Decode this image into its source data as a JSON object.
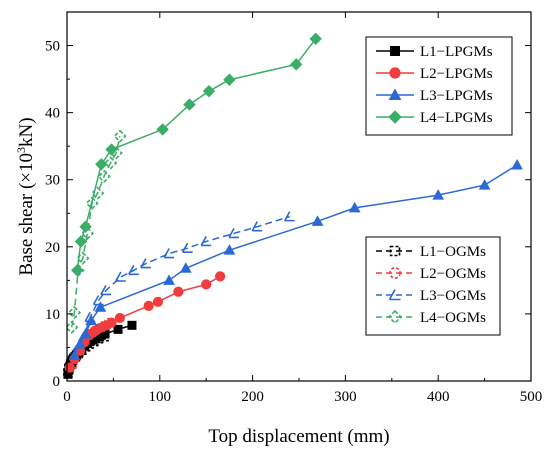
{
  "chart_data": {
    "type": "line",
    "xlabel": "Top displacement (mm)",
    "ylabel_prefix": "Base shear (×10",
    "ylabel_exp": "3",
    "ylabel_suffix": "kN)",
    "xlim": [
      0,
      500
    ],
    "ylim": [
      0,
      55
    ],
    "xticks": [
      0,
      100,
      200,
      300,
      400,
      500
    ],
    "yticks": [
      0,
      10,
      20,
      30,
      40,
      50
    ],
    "grid": false,
    "legends": [
      {
        "placement": "top-right",
        "series": [
          "L1−LPGMs",
          "L2−LPGMs",
          "L3−LPGMs",
          "L4−LPGMs"
        ]
      },
      {
        "placement": "lower-right",
        "series": [
          "L1−OGMs",
          "L2−OGMs",
          "L3−OGMs",
          "L4−OGMs"
        ]
      }
    ],
    "series": [
      {
        "name": "L1−LPGMs",
        "color": "#000000",
        "marker": "square",
        "filled": true,
        "dash": false,
        "x": [
          1,
          2,
          3,
          5,
          7,
          10,
          13,
          16,
          19,
          22,
          25,
          28,
          31,
          34,
          37,
          41,
          55,
          70
        ],
        "y": [
          1.0,
          1.6,
          2.2,
          2.8,
          3.4,
          3.9,
          4.3,
          4.8,
          5.2,
          5.6,
          5.9,
          6.1,
          6.3,
          6.6,
          6.8,
          7.0,
          7.7,
          8.3
        ]
      },
      {
        "name": "L2−LPGMs",
        "color": "#f03c3c",
        "marker": "circle",
        "filled": true,
        "dash": false,
        "x": [
          3,
          8,
          14,
          19,
          24,
          28,
          31,
          34,
          38,
          43,
          48,
          57,
          88,
          98,
          120,
          150,
          165
        ],
        "y": [
          2.0,
          3.3,
          4.5,
          5.8,
          6.8,
          7.2,
          7.5,
          7.8,
          8.0,
          8.3,
          8.7,
          9.4,
          11.2,
          11.8,
          13.3,
          14.4,
          15.6
        ]
      },
      {
        "name": "L3−LPGMs",
        "color": "#2a69d6",
        "marker": "triangle",
        "filled": true,
        "dash": false,
        "x": [
          8,
          14,
          20,
          26,
          36,
          110,
          128,
          175,
          270,
          310,
          400,
          450,
          485
        ],
        "y": [
          3.8,
          5.5,
          7.0,
          9.0,
          11.0,
          15.0,
          16.8,
          19.5,
          23.8,
          25.8,
          27.7,
          29.2,
          32.2
        ]
      },
      {
        "name": "L4−LPGMs",
        "color": "#3aad67",
        "marker": "diamond",
        "filled": true,
        "dash": false,
        "x": [
          11,
          15,
          20,
          37,
          48,
          103,
          132,
          153,
          175,
          247,
          268
        ],
        "y": [
          16.5,
          20.8,
          23.0,
          32.3,
          34.5,
          37.5,
          41.2,
          43.2,
          44.9,
          47.2,
          51.0
        ]
      },
      {
        "name": "L1−OGMs",
        "color": "#000000",
        "marker": "square",
        "filled": false,
        "dash": true,
        "x": [
          1,
          2,
          4,
          6,
          9,
          12,
          16,
          20,
          24,
          29,
          34,
          40
        ],
        "y": [
          1.2,
          1.9,
          2.5,
          3.1,
          3.6,
          4.1,
          4.6,
          5.1,
          5.5,
          5.9,
          6.3,
          6.6
        ]
      },
      {
        "name": "L2−OGMs",
        "color": "#f03c3c",
        "marker": "circle",
        "filled": false,
        "dash": true,
        "x": [
          5,
          10,
          14,
          18,
          22,
          27,
          32,
          38,
          45
        ],
        "y": [
          2.2,
          3.5,
          4.5,
          5.5,
          6.4,
          7.2,
          7.7,
          8.1,
          8.6
        ]
      },
      {
        "name": "L3−OGMs",
        "color": "#2a69d6",
        "marker": "triangle",
        "filled": false,
        "dash": true,
        "x": [
          10,
          18,
          25,
          34,
          42,
          58,
          72,
          85,
          110,
          130,
          150,
          180,
          205,
          240
        ],
        "y": [
          4.5,
          6.5,
          9.5,
          12.0,
          13.5,
          15.5,
          16.5,
          17.5,
          19.0,
          19.8,
          20.8,
          22.0,
          23.0,
          24.5
        ]
      },
      {
        "name": "L4−OGMs",
        "color": "#3aad67",
        "marker": "diamond",
        "filled": false,
        "dash": true,
        "x": [
          5,
          8,
          12,
          17,
          22,
          27,
          33,
          40,
          47,
          53,
          57
        ],
        "y": [
          8.0,
          10.2,
          16.5,
          18.3,
          22.0,
          26.5,
          28.0,
          30.5,
          32.5,
          34.0,
          36.5
        ]
      }
    ]
  }
}
